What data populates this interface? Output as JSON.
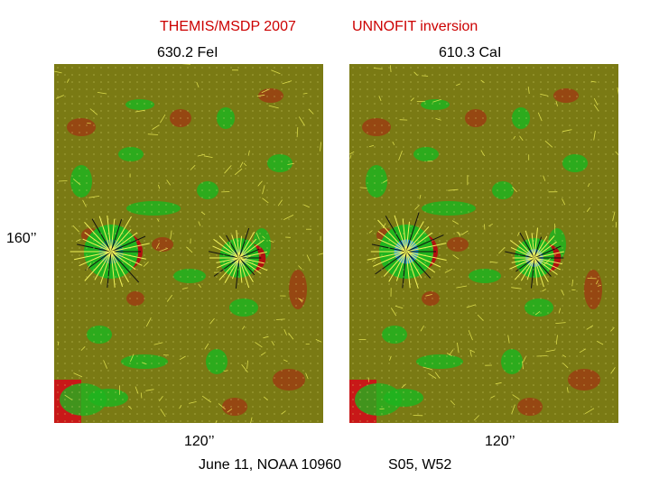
{
  "header": {
    "instrument": "THEMIS/MSDP  2007",
    "method": "UNNOFIT inversion"
  },
  "panels": [
    {
      "line": "630.2 FeI",
      "x_extent": "120’’"
    },
    {
      "line": "610.3 CaI",
      "x_extent": "120’’"
    }
  ],
  "y_extent": "160’’",
  "footer": {
    "date_region": "June 11, NOAA 10960",
    "location": "S05, W52"
  },
  "colors": {
    "background": "#7a7a14",
    "positive": "#1fb41f",
    "negative": "#a82410",
    "vectors": "#f2f25a"
  }
}
